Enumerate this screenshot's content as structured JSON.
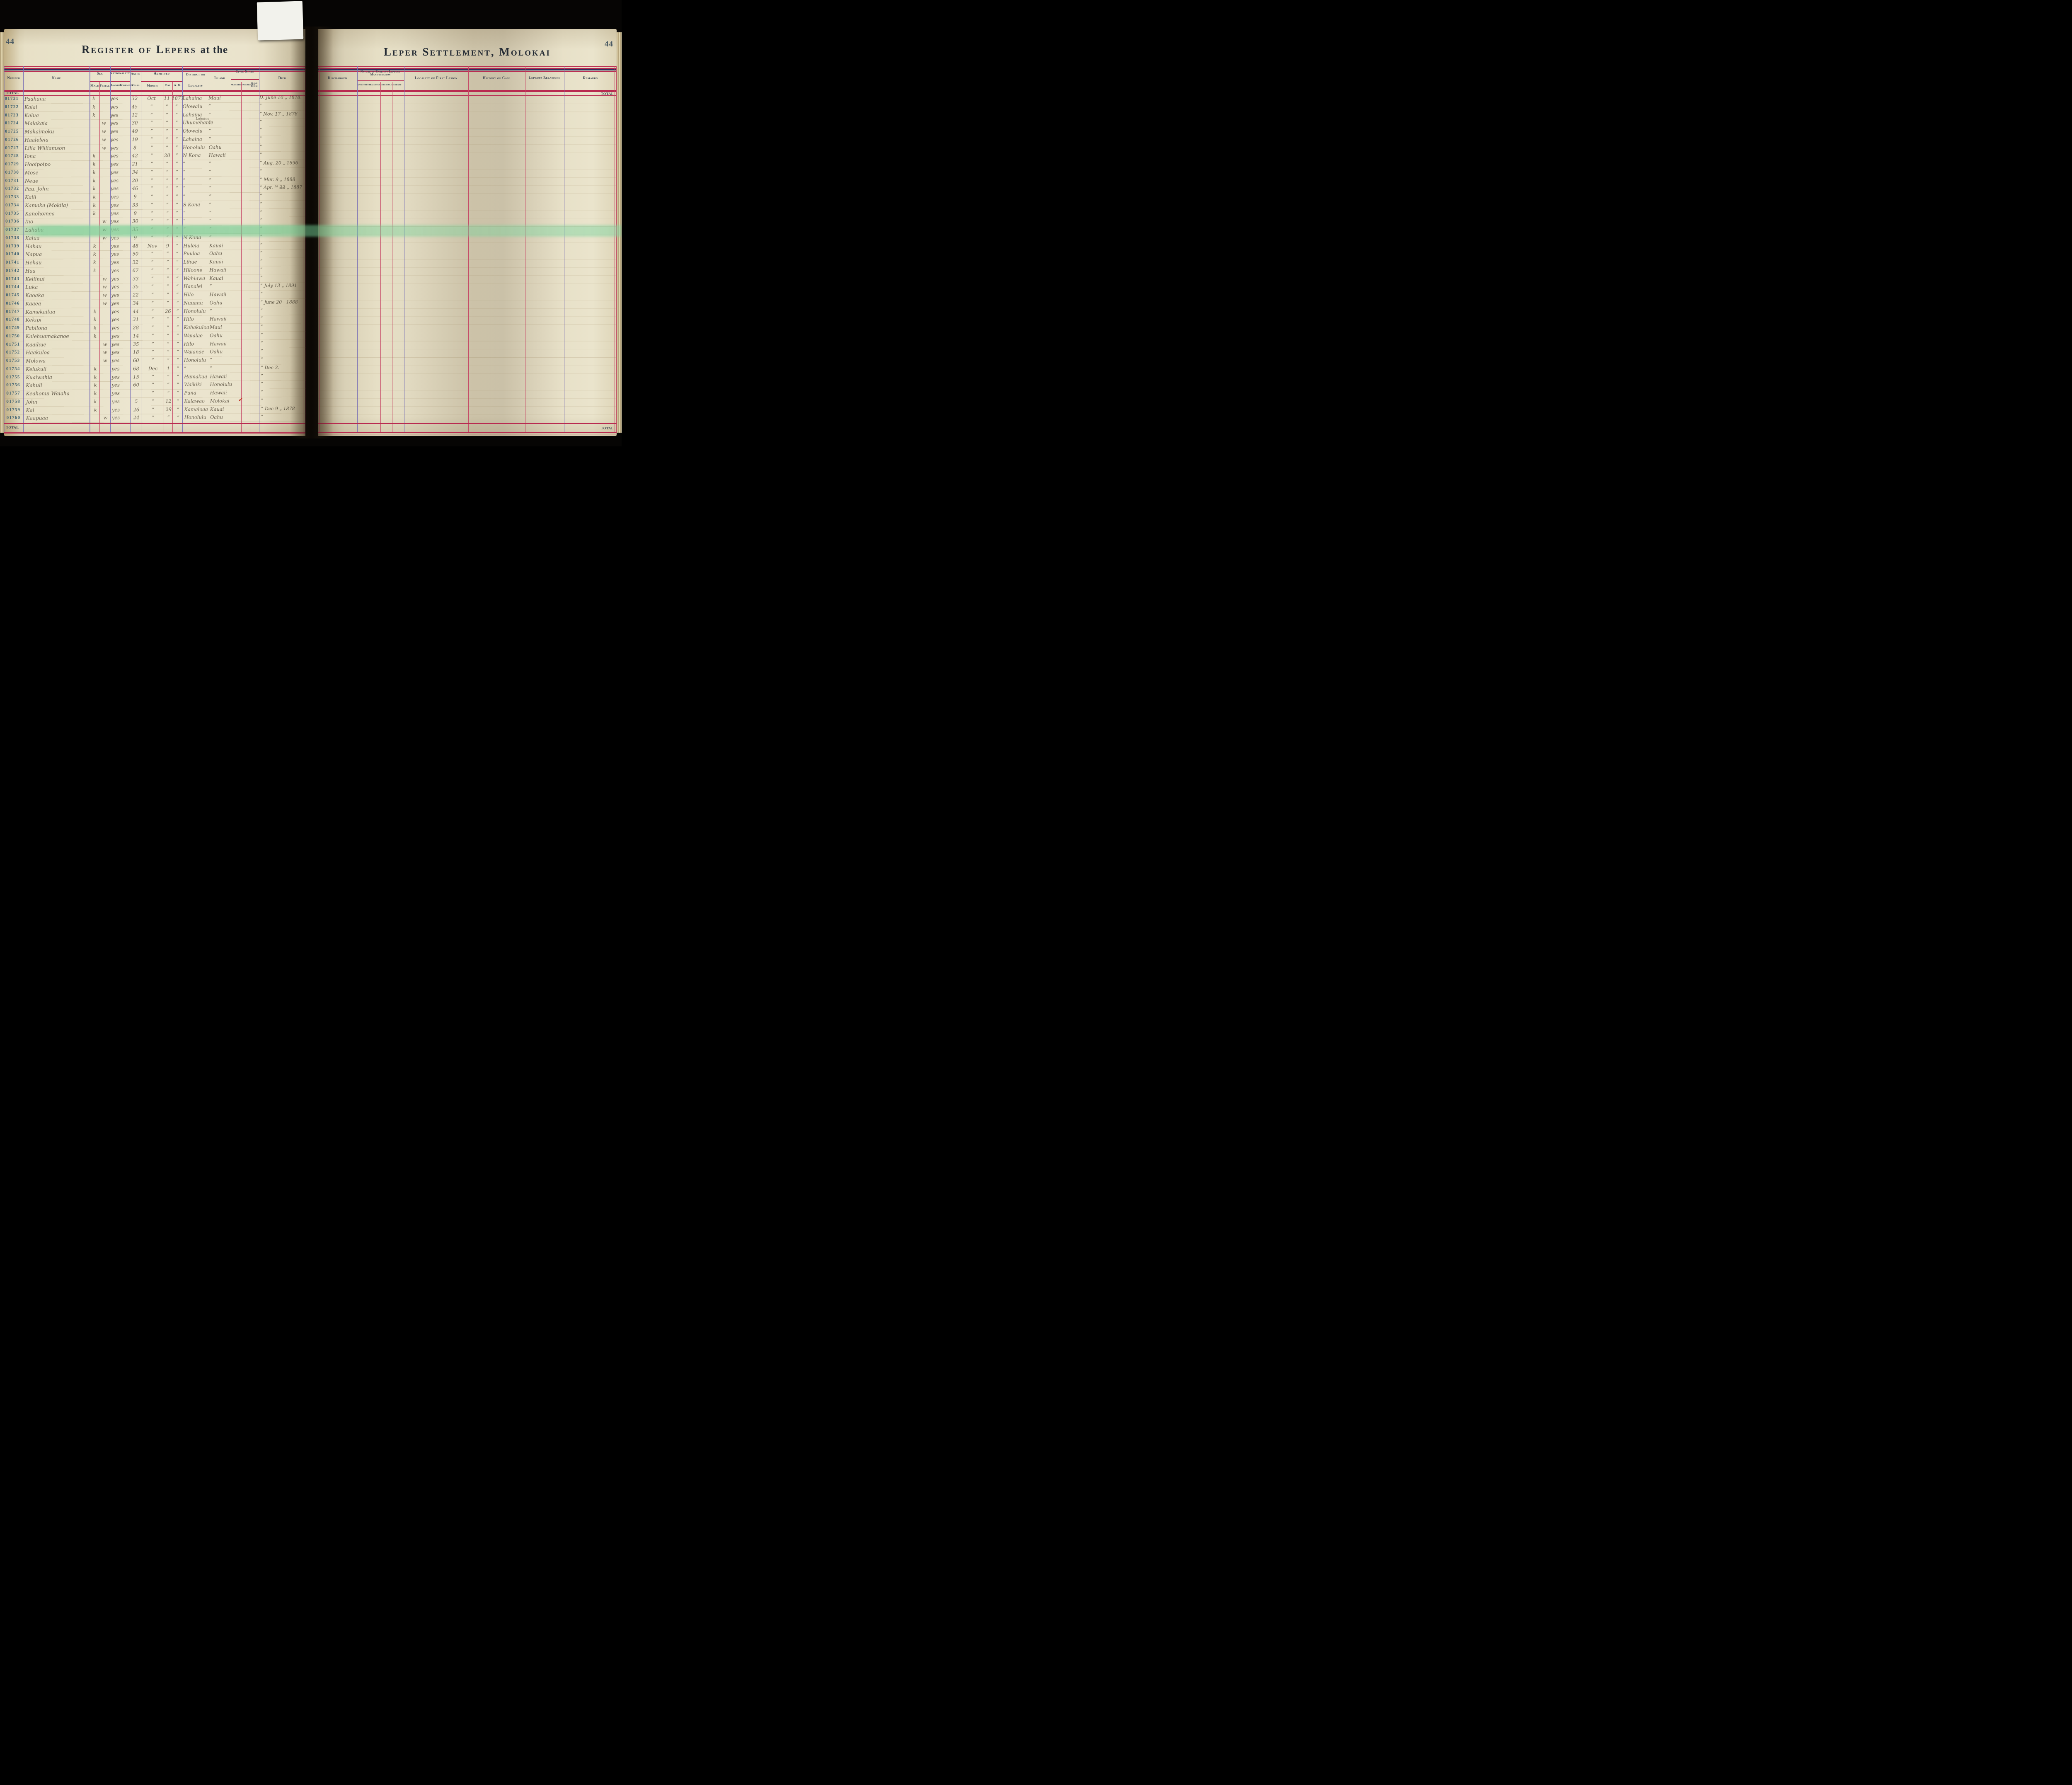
{
  "book": {
    "left_page": {
      "page_number": "44",
      "title": "Register of Lepers",
      "title_suffix": "at the",
      "total_top": "TOTAL",
      "total_bottom": "TOTAL"
    },
    "right_page": {
      "page_number": "44",
      "title": "Leper Settlement, Molokai",
      "total_top": "TOTAL",
      "total_bottom": "TOTAL"
    }
  },
  "headers_left": {
    "number": "Number",
    "name": "Name",
    "sex": "Sex",
    "male": "Male",
    "female": "Female",
    "nationality": "Nationality",
    "hawaiian": "Hawaiian",
    "foreigner": "Foreigner",
    "age_top": "Age in",
    "age_bottom": "Years",
    "admitted": "Admitted",
    "month": "Month",
    "day": "Day",
    "ad": "A. D.",
    "district_top": "District or",
    "district_bottom": "Locality",
    "island": "Island",
    "civil_state": "Civil State",
    "married": "Married",
    "unmarried": "Unmarried",
    "have_issue": "Have Issue",
    "died": "Died"
  },
  "headers_right": {
    "discharged": "Discharged",
    "nature": "Nature of Earliest Leprous Manifestation",
    "anaesthetic": "Anaesthetic",
    "macurous": "Macurous",
    "tuberculous": "Tuberculous",
    "mixed": "Mixed",
    "locality_lesion": "Locality of First Lesion",
    "history": "History of Case",
    "relations": "Leprous Relations",
    "remarks": "Remarks"
  },
  "colors": {
    "accent_crimson": "#b92a50",
    "accent_purple": "#7a70b5",
    "ink": "#6a6150",
    "print": "#39424f",
    "number_teal": "#3f6272",
    "highlight_green": "#7ecd98",
    "check_red": "#c23727"
  },
  "rows": [
    {
      "number": "01721",
      "name": "Paahana",
      "sex": "k",
      "hawaiian": "yes",
      "age": "32",
      "month": "Oct",
      "day": "11",
      "ad": "1877",
      "locality": "Lahaina",
      "locality_note": "",
      "island": "Maui",
      "died": "D. June 10 „ 1878.",
      "highlight": false,
      "check": false
    },
    {
      "number": "01722",
      "name": "Kalai",
      "sex": "k",
      "hawaiian": "yes",
      "age": "45",
      "month": "”",
      "day": "”",
      "ad": "”",
      "locality": "Olowalu",
      "locality_note": "",
      "island": "”",
      "died": "”",
      "highlight": false,
      "check": false
    },
    {
      "number": "01723",
      "name": "Kalua",
      "sex": "k",
      "hawaiian": "yes",
      "age": "12",
      "month": "”",
      "day": "”",
      "ad": "”",
      "locality": "Lahaina",
      "locality_note": "",
      "island": "”",
      "died": "” Nov. 17 „ 1878",
      "highlight": false,
      "check": false
    },
    {
      "number": "01724",
      "name": "Malakaia",
      "sex": "w",
      "hawaiian": "yes",
      "age": "30",
      "month": "”",
      "day": "”",
      "ad": "”",
      "locality": "Ukumehame",
      "locality_note": "Lahaina",
      "island": "”",
      "died": "”",
      "highlight": false,
      "check": false
    },
    {
      "number": "01725",
      "name": "Makaimoku",
      "sex": "w",
      "hawaiian": "yes",
      "age": "49",
      "month": "”",
      "day": "”",
      "ad": "”",
      "locality": "Olowalu",
      "locality_note": "",
      "island": "”",
      "died": "”",
      "highlight": false,
      "check": false
    },
    {
      "number": "01726",
      "name": "Haaleleia",
      "sex": "w",
      "hawaiian": "yes",
      "age": "19",
      "month": "”",
      "day": "”",
      "ad": "”",
      "locality": "Lahaina",
      "locality_note": "",
      "island": "”",
      "died": "”",
      "highlight": false,
      "check": false
    },
    {
      "number": "01727",
      "name": "Lilia Williamson",
      "sex": "w",
      "hawaiian": "yes",
      "age": "8",
      "month": "”",
      "day": "”",
      "ad": "”",
      "locality": "Honolulu",
      "locality_note": "",
      "island": "Oahu",
      "died": "”",
      "highlight": false,
      "check": false
    },
    {
      "number": "01728",
      "name": "Iona",
      "sex": "k",
      "hawaiian": "yes",
      "age": "42",
      "month": "”",
      "day": "20",
      "ad": "”",
      "locality": "N Kona",
      "locality_note": "",
      "island": "Hawaii",
      "died": "”",
      "highlight": false,
      "check": false
    },
    {
      "number": "01729",
      "name": "Hooipoipo",
      "sex": "k",
      "hawaiian": "yes",
      "age": "21",
      "month": "”",
      "day": "”",
      "ad": "”",
      "locality": "”",
      "locality_note": "",
      "island": "”",
      "died": "” Aug. 20 „ 1896",
      "highlight": false,
      "check": false
    },
    {
      "number": "01730",
      "name": "Mose",
      "sex": "k",
      "hawaiian": "yes",
      "age": "34",
      "month": "”",
      "day": "”",
      "ad": "”",
      "locality": "”",
      "locality_note": "",
      "island": "”",
      "died": "”",
      "highlight": false,
      "check": false
    },
    {
      "number": "01731",
      "name": "Neue",
      "sex": "k",
      "hawaiian": "yes",
      "age": "20",
      "month": "”",
      "day": "”",
      "ad": "”",
      "locality": "”",
      "locality_note": "",
      "island": "”",
      "died": "” Mar. 9 „ 1888",
      "highlight": false,
      "check": false
    },
    {
      "number": "01732",
      "name": "Pau, John",
      "sex": "k",
      "hawaiian": "yes",
      "age": "46",
      "month": "”",
      "day": "”",
      "ad": "”",
      "locality": "”",
      "locality_note": "",
      "island": "”",
      "died": "” Apr. ²⁸ 2̶2̶ „ 1887",
      "highlight": false,
      "check": false
    },
    {
      "number": "01733",
      "name": "Kaili",
      "sex": "k",
      "hawaiian": "yes",
      "age": "9",
      "month": "”",
      "day": "”",
      "ad": "”",
      "locality": "”",
      "locality_note": "",
      "island": "”",
      "died": "”",
      "highlight": false,
      "check": false
    },
    {
      "number": "01734",
      "name": "Kamaka (Mokila)",
      "sex": "k",
      "hawaiian": "yes",
      "age": "33",
      "month": "”",
      "day": "”",
      "ad": "”",
      "locality": "S Kona",
      "locality_note": "",
      "island": "”",
      "died": "”",
      "highlight": false,
      "check": false
    },
    {
      "number": "01735",
      "name": "Kanohomea",
      "sex": "k",
      "hawaiian": "yes",
      "age": "9",
      "month": "”",
      "day": "”",
      "ad": "”",
      "locality": "”",
      "locality_note": "",
      "island": "”",
      "died": "”",
      "highlight": false,
      "check": false
    },
    {
      "number": "01736",
      "name": "Ino",
      "sex": "w",
      "hawaiian": "yes",
      "age": "30",
      "month": "”",
      "day": "”",
      "ad": "”",
      "locality": "”",
      "locality_note": "",
      "island": "”",
      "died": "”",
      "highlight": false,
      "check": false
    },
    {
      "number": "01737",
      "name": "Lahaba",
      "sex": "w",
      "hawaiian": "yes",
      "age": "35",
      "month": "”",
      "day": "”",
      "ad": "”",
      "locality": "”",
      "locality_note": "",
      "island": "”",
      "died": "”",
      "highlight": true,
      "check": false
    },
    {
      "number": "01738",
      "name": "Kalua",
      "sex": "w",
      "hawaiian": "yes",
      "age": "9",
      "month": "”",
      "day": "”",
      "ad": "”",
      "locality": "N Kona",
      "locality_note": "",
      "island": "”",
      "died": "”",
      "highlight": false,
      "check": false
    },
    {
      "number": "01739",
      "name": "Hakau",
      "sex": "k",
      "hawaiian": "yes",
      "age": "48",
      "month": "Nov",
      "day": "9",
      "ad": "”",
      "locality": "Huleia",
      "locality_note": "",
      "island": "Kauai",
      "died": "”",
      "highlight": false,
      "check": false
    },
    {
      "number": "01740",
      "name": "Napua",
      "sex": "k",
      "hawaiian": "yes",
      "age": "50",
      "month": "”",
      "day": "”",
      "ad": "”",
      "locality": "Puuloa",
      "locality_note": "",
      "island": "Oahu",
      "died": "”",
      "highlight": false,
      "check": false
    },
    {
      "number": "01741",
      "name": "Hekau",
      "sex": "k",
      "hawaiian": "yes",
      "age": "32",
      "month": "”",
      "day": "”",
      "ad": "”",
      "locality": "Lihue",
      "locality_note": "",
      "island": "Kauai",
      "died": "”",
      "highlight": false,
      "check": false
    },
    {
      "number": "01742",
      "name": "Haa",
      "sex": "k",
      "hawaiian": "yes",
      "age": "67",
      "month": "”",
      "day": "”",
      "ad": "”",
      "locality": "Hiloone",
      "locality_note": "",
      "island": "Hawaii",
      "died": "”",
      "highlight": false,
      "check": false
    },
    {
      "number": "01743",
      "name": "Keliinui",
      "sex": "w",
      "hawaiian": "yes",
      "age": "33",
      "month": "”",
      "day": "”",
      "ad": "”",
      "locality": "Wahiawa",
      "locality_note": "",
      "island": "Kauai",
      "died": "”",
      "highlight": false,
      "check": false
    },
    {
      "number": "01744",
      "name": "Luka",
      "sex": "w",
      "hawaiian": "yes",
      "age": "35",
      "month": "”",
      "day": "”",
      "ad": "”",
      "locality": "Hanalei",
      "locality_note": "",
      "island": "”",
      "died": "” July 13 „ 1891",
      "highlight": false,
      "check": false
    },
    {
      "number": "01745",
      "name": "Kaoaka",
      "sex": "w",
      "hawaiian": "yes",
      "age": "22",
      "month": "”",
      "day": "”",
      "ad": "”",
      "locality": "Hilo",
      "locality_note": "",
      "island": "Hawaii",
      "died": "”",
      "highlight": false,
      "check": false
    },
    {
      "number": "01746",
      "name": "Kaaea",
      "sex": "w",
      "hawaiian": "yes",
      "age": "34",
      "month": "”",
      "day": "”",
      "ad": "”",
      "locality": "Nuuanu",
      "locality_note": "",
      "island": "Oahu",
      "died": "” June 20 · 1888",
      "highlight": false,
      "check": false
    },
    {
      "number": "01747",
      "name": "Kamekailua",
      "sex": "k",
      "hawaiian": "yes",
      "age": "44",
      "month": "”",
      "day": "26",
      "ad": "”",
      "locality": "Honolulu",
      "locality_note": "",
      "island": "”",
      "died": "”",
      "highlight": false,
      "check": false
    },
    {
      "number": "01748",
      "name": "Kekipi",
      "sex": "k",
      "hawaiian": "yes",
      "age": "31",
      "month": "”",
      "day": "”",
      "ad": "”",
      "locality": "Hilo",
      "locality_note": "",
      "island": "Hawaii",
      "died": "”",
      "highlight": false,
      "check": false
    },
    {
      "number": "01749",
      "name": "Pabilona",
      "sex": "k",
      "hawaiian": "yes",
      "age": "28",
      "month": "”",
      "day": "”",
      "ad": "”",
      "locality": "Kahakuloa",
      "locality_note": "",
      "island": "Maui",
      "died": "”",
      "highlight": false,
      "check": false
    },
    {
      "number": "01750",
      "name": "Kalehuamakanoe",
      "sex": "k",
      "hawaiian": "yes",
      "age": "14",
      "month": "”",
      "day": "”",
      "ad": "”",
      "locality": "Waialae",
      "locality_note": "",
      "island": "Oahu",
      "died": "”",
      "highlight": false,
      "check": false
    },
    {
      "number": "01751",
      "name": "Kaaihue",
      "sex": "w",
      "hawaiian": "yes",
      "age": "35",
      "month": "”",
      "day": "”",
      "ad": "”",
      "locality": "Hilo",
      "locality_note": "",
      "island": "Hawaii",
      "died": "”",
      "highlight": false,
      "check": false
    },
    {
      "number": "01752",
      "name": "Haakuloa",
      "sex": "w",
      "hawaiian": "yes",
      "age": "18",
      "month": "”",
      "day": "”",
      "ad": "”",
      "locality": "Waianae",
      "locality_note": "",
      "island": "Oahu",
      "died": "”",
      "highlight": false,
      "check": false
    },
    {
      "number": "01753",
      "name": "Molowa",
      "sex": "w",
      "hawaiian": "yes",
      "age": "60",
      "month": "”",
      "day": "”",
      "ad": "”",
      "locality": "Honolulu",
      "locality_note": "",
      "island": "”",
      "died": "”",
      "highlight": false,
      "check": false
    },
    {
      "number": "01754",
      "name": "Kelukuli",
      "sex": "k",
      "hawaiian": "yes",
      "age": "68",
      "month": "Dec",
      "day": "1",
      "ad": "”",
      "locality": "”",
      "locality_note": "",
      "island": "”",
      "died": "” Dec 3.",
      "highlight": false,
      "check": false
    },
    {
      "number": "01755",
      "name": "Kuaiwahia",
      "sex": "k",
      "hawaiian": "yes",
      "age": "15",
      "month": "”",
      "day": "”",
      "ad": "”",
      "locality": "Hamakua",
      "locality_note": "",
      "island": "Hawaii",
      "died": "”",
      "highlight": false,
      "check": false
    },
    {
      "number": "01756",
      "name": "Kahuli",
      "sex": "k",
      "hawaiian": "yes",
      "age": "60",
      "month": "”",
      "day": "”",
      "ad": "”",
      "locality": "Waikiki",
      "locality_note": "",
      "island": "Honolulu",
      "died": "”",
      "highlight": false,
      "check": false
    },
    {
      "number": "01757",
      "name": "Keahonui Waiaha",
      "sex": "k",
      "hawaiian": "yes",
      "age": "",
      "month": "”",
      "day": "”",
      "ad": "”",
      "locality": "Puna",
      "locality_note": "",
      "island": "Hawaii",
      "died": "”",
      "highlight": false,
      "check": false
    },
    {
      "number": "01758",
      "name": "John",
      "sex": "k",
      "hawaiian": "yes",
      "age": "5",
      "month": "”",
      "day": "12",
      "ad": "”",
      "locality": "Kalawao",
      "locality_note": "",
      "island": "Molokai",
      "died": "”",
      "highlight": false,
      "check": true
    },
    {
      "number": "01759",
      "name": "Kai",
      "sex": "k",
      "hawaiian": "yes",
      "age": "26",
      "month": "”",
      "day": "29",
      "ad": "”",
      "locality": "Kamaloaa",
      "locality_note": "",
      "island": "Kauai",
      "died": "” Dec 9 „ 1878",
      "highlight": false,
      "check": false
    },
    {
      "number": "01760",
      "name": "Kaapuaa",
      "sex": "w",
      "hawaiian": "yes",
      "age": "24",
      "month": "”",
      "day": "”",
      "ad": "”",
      "locality": "Honolulu",
      "locality_note": "",
      "island": "Oahu",
      "died": "”",
      "highlight": false,
      "check": false
    }
  ]
}
